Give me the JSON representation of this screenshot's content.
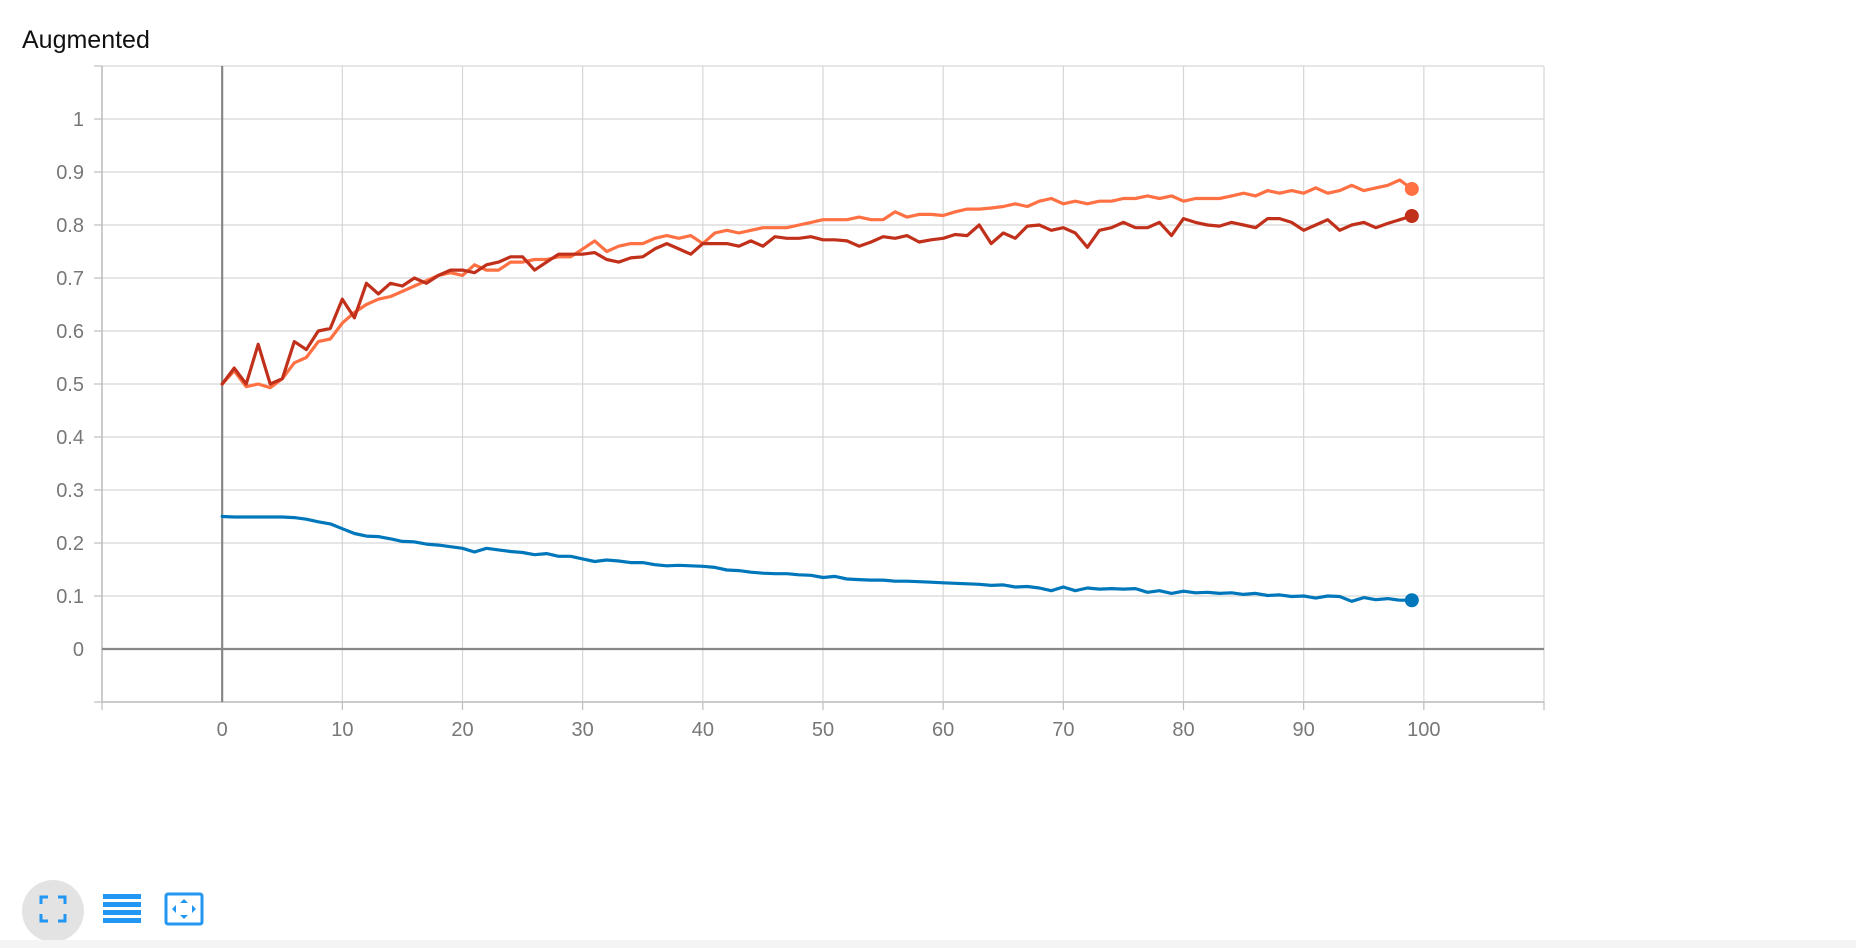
{
  "card": {
    "title": "Augmented"
  },
  "toolbar": {
    "buttons": [
      {
        "icon": "fullscreen-icon"
      },
      {
        "icon": "list-icon"
      },
      {
        "icon": "fit-domain-icon"
      }
    ],
    "accent_color": "#2196f3"
  },
  "chart_data": {
    "type": "line",
    "title": "Augmented",
    "xlabel": "",
    "ylabel": "",
    "xlim": [
      -10,
      110
    ],
    "ylim": [
      -0.1,
      1.1
    ],
    "x_ticks": [
      0,
      10,
      20,
      30,
      40,
      50,
      60,
      70,
      80,
      90,
      100
    ],
    "y_ticks": [
      0,
      0.1,
      0.2,
      0.3,
      0.4,
      0.5,
      0.6,
      0.7,
      0.8,
      0.9,
      1
    ],
    "grid": true,
    "x": [
      0,
      1,
      2,
      3,
      4,
      5,
      6,
      7,
      8,
      9,
      10,
      11,
      12,
      13,
      14,
      15,
      16,
      17,
      18,
      19,
      20,
      21,
      22,
      23,
      24,
      25,
      26,
      27,
      28,
      29,
      30,
      31,
      32,
      33,
      34,
      35,
      36,
      37,
      38,
      39,
      40,
      41,
      42,
      43,
      44,
      45,
      46,
      47,
      48,
      49,
      50,
      51,
      52,
      53,
      54,
      55,
      56,
      57,
      58,
      59,
      60,
      61,
      62,
      63,
      64,
      65,
      66,
      67,
      68,
      69,
      70,
      71,
      72,
      73,
      74,
      75,
      76,
      77,
      78,
      79,
      80,
      81,
      82,
      83,
      84,
      85,
      86,
      87,
      88,
      89,
      90,
      91,
      92,
      93,
      94,
      95,
      96,
      97,
      98,
      99
    ],
    "series": [
      {
        "color": "#ff7043",
        "values": [
          0.5,
          0.525,
          0.495,
          0.5,
          0.493,
          0.51,
          0.54,
          0.55,
          0.58,
          0.585,
          0.615,
          0.635,
          0.65,
          0.66,
          0.665,
          0.675,
          0.685,
          0.695,
          0.705,
          0.71,
          0.705,
          0.725,
          0.715,
          0.715,
          0.73,
          0.73,
          0.735,
          0.735,
          0.74,
          0.74,
          0.755,
          0.77,
          0.75,
          0.76,
          0.765,
          0.765,
          0.775,
          0.78,
          0.775,
          0.78,
          0.765,
          0.785,
          0.79,
          0.785,
          0.79,
          0.795,
          0.795,
          0.795,
          0.8,
          0.805,
          0.81,
          0.81,
          0.81,
          0.815,
          0.81,
          0.81,
          0.825,
          0.815,
          0.82,
          0.82,
          0.818,
          0.825,
          0.83,
          0.83,
          0.832,
          0.835,
          0.84,
          0.835,
          0.845,
          0.85,
          0.84,
          0.845,
          0.84,
          0.845,
          0.845,
          0.85,
          0.85,
          0.855,
          0.85,
          0.855,
          0.845,
          0.85,
          0.85,
          0.85,
          0.855,
          0.86,
          0.855,
          0.865,
          0.86,
          0.865,
          0.86,
          0.87,
          0.86,
          0.865,
          0.875,
          0.865,
          0.87,
          0.875,
          0.885,
          0.868
        ]
      },
      {
        "color": "#c0301a",
        "values": [
          0.5,
          0.53,
          0.5,
          0.575,
          0.5,
          0.51,
          0.58,
          0.565,
          0.6,
          0.605,
          0.66,
          0.625,
          0.69,
          0.67,
          0.69,
          0.685,
          0.7,
          0.69,
          0.705,
          0.715,
          0.715,
          0.71,
          0.725,
          0.73,
          0.74,
          0.74,
          0.715,
          0.73,
          0.745,
          0.745,
          0.745,
          0.748,
          0.735,
          0.73,
          0.738,
          0.74,
          0.755,
          0.765,
          0.755,
          0.745,
          0.765,
          0.765,
          0.765,
          0.76,
          0.77,
          0.76,
          0.778,
          0.775,
          0.775,
          0.778,
          0.772,
          0.772,
          0.77,
          0.76,
          0.768,
          0.778,
          0.775,
          0.78,
          0.768,
          0.772,
          0.775,
          0.782,
          0.78,
          0.8,
          0.765,
          0.785,
          0.775,
          0.798,
          0.8,
          0.79,
          0.795,
          0.785,
          0.758,
          0.79,
          0.795,
          0.805,
          0.795,
          0.795,
          0.805,
          0.78,
          0.812,
          0.805,
          0.8,
          0.798,
          0.805,
          0.8,
          0.795,
          0.812,
          0.812,
          0.805,
          0.79,
          0.8,
          0.81,
          0.79,
          0.8,
          0.805,
          0.795,
          0.803,
          0.81,
          0.817
        ]
      },
      {
        "color": "#0077bb",
        "values": [
          0.25,
          0.249,
          0.249,
          0.249,
          0.249,
          0.249,
          0.248,
          0.245,
          0.24,
          0.236,
          0.227,
          0.218,
          0.213,
          0.212,
          0.208,
          0.203,
          0.202,
          0.198,
          0.196,
          0.193,
          0.19,
          0.183,
          0.19,
          0.187,
          0.184,
          0.182,
          0.178,
          0.18,
          0.175,
          0.175,
          0.17,
          0.165,
          0.168,
          0.166,
          0.163,
          0.163,
          0.159,
          0.157,
          0.158,
          0.157,
          0.156,
          0.154,
          0.149,
          0.148,
          0.145,
          0.143,
          0.142,
          0.142,
          0.14,
          0.139,
          0.135,
          0.137,
          0.132,
          0.131,
          0.13,
          0.13,
          0.128,
          0.128,
          0.127,
          0.126,
          0.125,
          0.124,
          0.123,
          0.122,
          0.12,
          0.121,
          0.117,
          0.118,
          0.115,
          0.11,
          0.117,
          0.11,
          0.115,
          0.113,
          0.114,
          0.113,
          0.114,
          0.107,
          0.11,
          0.105,
          0.109,
          0.106,
          0.107,
          0.105,
          0.106,
          0.103,
          0.105,
          0.101,
          0.102,
          0.099,
          0.1,
          0.096,
          0.1,
          0.099,
          0.09,
          0.097,
          0.093,
          0.095,
          0.092,
          0.092
        ]
      }
    ]
  }
}
